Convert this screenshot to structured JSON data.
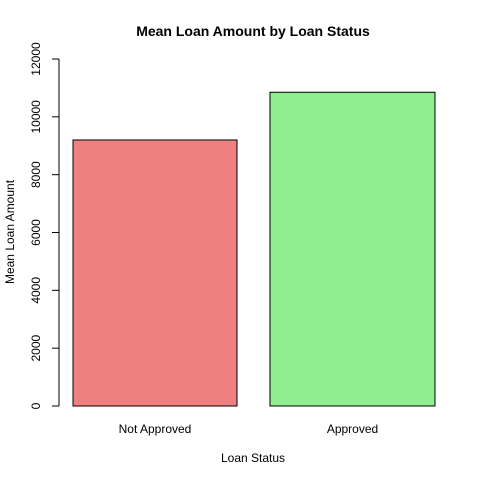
{
  "chart_data": {
    "type": "bar",
    "title": "Mean Loan Amount by Loan Status",
    "xlabel": "Loan Status",
    "ylabel": "Mean Loan Amount",
    "categories": [
      "Not Approved",
      "Approved"
    ],
    "values": [
      9200,
      10850
    ],
    "ylim": [
      0,
      12000
    ],
    "yticks": [
      0,
      2000,
      4000,
      6000,
      8000,
      10000,
      12000
    ],
    "colors": [
      "#f08080",
      "#90ee90"
    ],
    "grid": false,
    "legend": "none"
  }
}
